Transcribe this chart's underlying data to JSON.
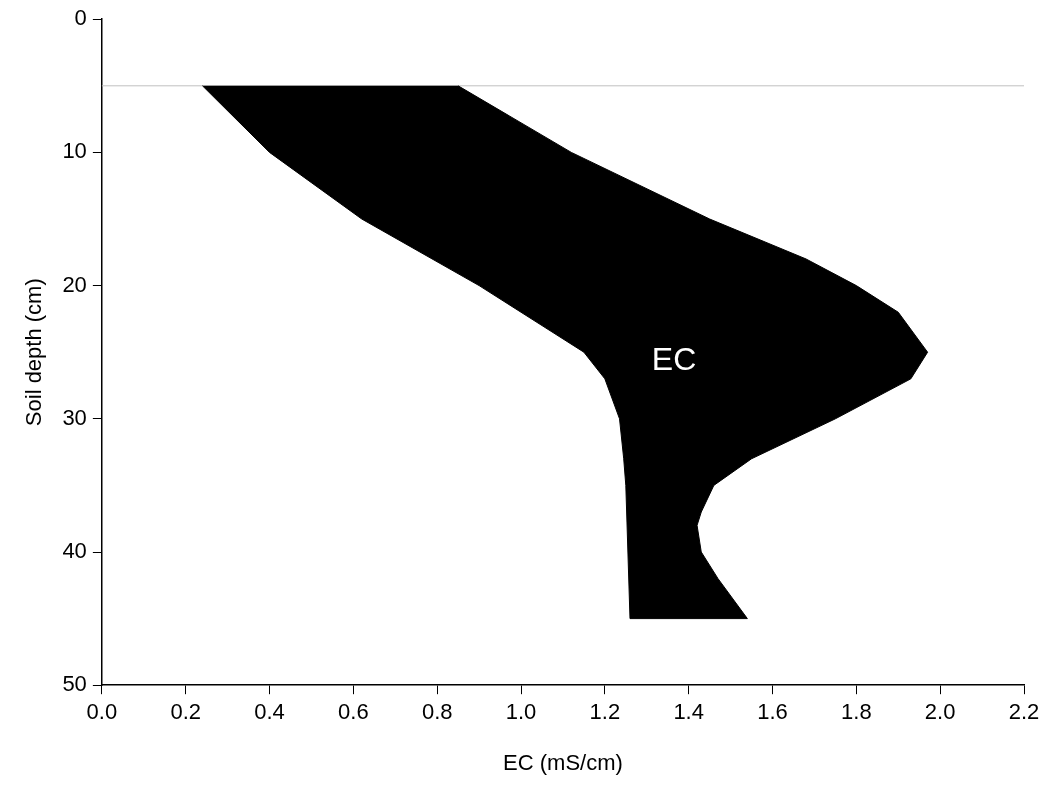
{
  "chart_data": {
    "type": "area",
    "xlabel": "EC (mS/cm)",
    "ylabel": "Soil depth (cm)",
    "xlim": [
      0,
      2.2
    ],
    "xticks": [
      {
        "value": 0,
        "label": "0.0"
      },
      {
        "value": 0.2,
        "label": "0.2"
      },
      {
        "value": 0.4,
        "label": "0.4"
      },
      {
        "value": 0.6,
        "label": "0.6"
      },
      {
        "value": 0.8,
        "label": "0.8"
      },
      {
        "value": 1,
        "label": "1.0"
      },
      {
        "value": 1.2,
        "label": "1.2"
      },
      {
        "value": 1.4,
        "label": "1.4"
      },
      {
        "value": 1.6,
        "label": "1.6"
      },
      {
        "value": 1.8,
        "label": "1.8"
      },
      {
        "value": 2,
        "label": "2.0"
      },
      {
        "value": 2.2,
        "label": "2.2"
      }
    ],
    "ylim": [
      50,
      0
    ],
    "yticks": [
      0,
      10,
      20,
      30,
      40,
      50
    ],
    "series": [
      {
        "color": "#000000",
        "x": [
          0.24,
          0.4,
          0.62,
          0.9,
          1.05,
          1.15,
          1.2,
          1.235,
          1.245,
          1.25,
          1.255,
          1.26,
          1.54,
          1.47,
          1.43,
          1.42,
          1.43,
          1.46,
          1.55,
          1.75,
          1.93,
          1.97,
          1.9,
          1.8,
          1.68,
          1.45,
          1.12,
          0.85
        ],
        "values": [
          5,
          10,
          15,
          20,
          23,
          25,
          27,
          30,
          33,
          35,
          40,
          45,
          45,
          42,
          40,
          38,
          37,
          35,
          33,
          30,
          27,
          25,
          22,
          20,
          18,
          15,
          10,
          5
        ]
      }
    ],
    "ref_lines": [
      {
        "axis": "y",
        "value": 5,
        "color": "#c0c0c0"
      }
    ],
    "annotations": [
      "EC"
    ],
    "grid": false,
    "legend": false
  }
}
